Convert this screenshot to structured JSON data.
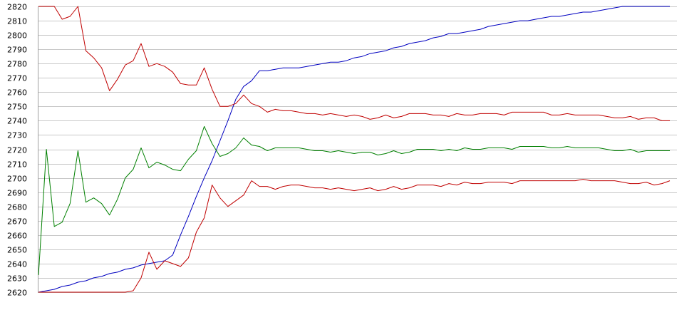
{
  "chart_data": {
    "type": "line",
    "title": "",
    "xlabel": "",
    "ylabel": "",
    "ylim": [
      2620,
      2820
    ],
    "yticks": [
      2620,
      2630,
      2640,
      2650,
      2660,
      2670,
      2680,
      2690,
      2700,
      2710,
      2720,
      2730,
      2740,
      2750,
      2760,
      2770,
      2780,
      2790,
      2800,
      2810,
      2820
    ],
    "grid": true,
    "x": [
      0,
      1,
      2,
      3,
      4,
      5,
      6,
      7,
      8,
      9,
      10,
      11,
      12,
      13,
      14,
      15,
      16,
      17,
      18,
      19,
      20,
      21,
      22,
      23,
      24,
      25,
      26,
      27,
      28,
      29,
      30,
      31,
      32,
      33,
      34,
      35,
      36,
      37,
      38,
      39,
      40,
      41,
      42,
      43,
      44,
      45,
      46,
      47,
      48,
      49,
      50,
      51,
      52,
      53,
      54,
      55,
      56,
      57,
      58,
      59,
      60,
      61,
      62,
      63,
      64,
      65,
      66,
      67,
      68,
      69,
      70,
      71,
      72,
      73,
      74,
      75,
      76,
      77,
      78,
      79,
      80
    ],
    "series": [
      {
        "color": "#0000c0",
        "values": [
          2620,
          2621,
          2622,
          2624,
          2625,
          2627,
          2628,
          2630,
          2631,
          2633,
          2634,
          2636,
          2637,
          2639,
          2640,
          2641,
          2642,
          2646,
          2660,
          2673,
          2687,
          2700,
          2712,
          2726,
          2740,
          2755,
          2764,
          2768,
          2775,
          2775,
          2776,
          2777,
          2777,
          2777,
          2778,
          2779,
          2780,
          2781,
          2781,
          2782,
          2784,
          2785,
          2787,
          2788,
          2789,
          2791,
          2792,
          2794,
          2795,
          2796,
          2798,
          2799,
          2801,
          2801,
          2802,
          2803,
          2804,
          2806,
          2807,
          2808,
          2809,
          2810,
          2810,
          2811,
          2812,
          2813,
          2813,
          2814,
          2815,
          2816,
          2816,
          2817,
          2818,
          2819,
          2820,
          2820,
          2820,
          2820,
          2820,
          2820,
          2820
        ]
      },
      {
        "color": "#c00000",
        "values": [
          2820,
          2820,
          2820,
          2811,
          2813,
          2820,
          2789,
          2784,
          2777,
          2761,
          2769,
          2779,
          2782,
          2794,
          2778,
          2780,
          2778,
          2774,
          2766,
          2765,
          2765,
          2777,
          2762,
          2750,
          2750,
          2752,
          2758,
          2752,
          2750,
          2746,
          2748,
          2747,
          2747,
          2746,
          2745,
          2745,
          2744,
          2745,
          2744,
          2743,
          2744,
          2743,
          2741,
          2742,
          2744,
          2742,
          2743,
          2745,
          2745,
          2745,
          2744,
          2744,
          2743,
          2745,
          2744,
          2744,
          2745,
          2745,
          2745,
          2744,
          2746,
          2746,
          2746,
          2746,
          2746,
          2744,
          2744,
          2745,
          2744,
          2744,
          2744,
          2744,
          2743,
          2742,
          2742,
          2743,
          2741,
          2742,
          2742,
          2740,
          2740
        ]
      },
      {
        "color": "#008000",
        "values": [
          2632,
          2720,
          2666,
          2669,
          2682,
          2719,
          2683,
          2686,
          2682,
          2674,
          2685,
          2700,
          2706,
          2721,
          2707,
          2711,
          2709,
          2706,
          2705,
          2713,
          2719,
          2736,
          2724,
          2715,
          2717,
          2721,
          2728,
          2723,
          2722,
          2719,
          2721,
          2721,
          2721,
          2721,
          2720,
          2719,
          2719,
          2718,
          2719,
          2718,
          2717,
          2718,
          2718,
          2716,
          2717,
          2719,
          2717,
          2718,
          2720,
          2720,
          2720,
          2719,
          2720,
          2719,
          2721,
          2720,
          2720,
          2721,
          2721,
          2721,
          2720,
          2722,
          2722,
          2722,
          2722,
          2721,
          2721,
          2722,
          2721,
          2721,
          2721,
          2721,
          2720,
          2719,
          2719,
          2720,
          2718,
          2719,
          2719,
          2719,
          2719
        ]
      },
      {
        "color": "#c00000",
        "values": [
          2620,
          2620,
          2620,
          2620,
          2620,
          2620,
          2620,
          2620,
          2620,
          2620,
          2620,
          2620,
          2621,
          2630,
          2648,
          2636,
          2642,
          2640,
          2638,
          2644,
          2662,
          2672,
          2695,
          2686,
          2680,
          2684,
          2688,
          2698,
          2694,
          2694,
          2692,
          2694,
          2695,
          2695,
          2694,
          2693,
          2693,
          2692,
          2693,
          2692,
          2691,
          2692,
          2693,
          2691,
          2692,
          2694,
          2692,
          2693,
          2695,
          2695,
          2695,
          2694,
          2696,
          2695,
          2697,
          2696,
          2696,
          2697,
          2697,
          2697,
          2696,
          2698,
          2698,
          2698,
          2698,
          2698,
          2698,
          2698,
          2698,
          2699,
          2698,
          2698,
          2698,
          2698,
          2697,
          2696,
          2696,
          2697,
          2695,
          2696,
          2698
        ]
      }
    ]
  }
}
